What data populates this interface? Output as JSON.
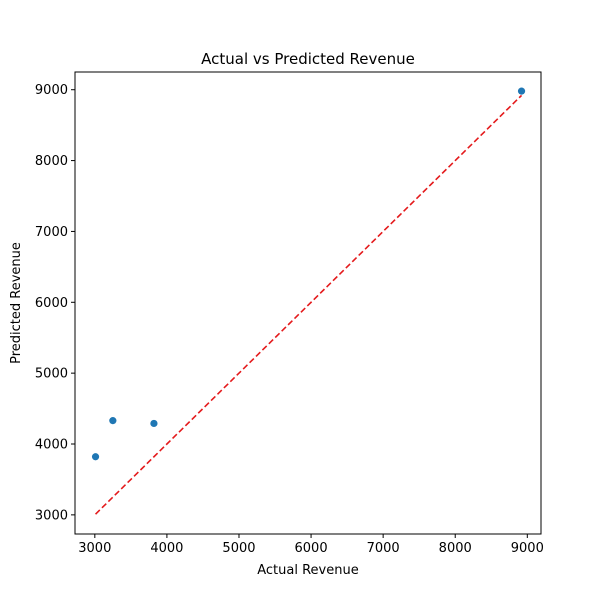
{
  "chart_data": {
    "type": "scatter",
    "title": "Actual vs Predicted Revenue",
    "xlabel": "Actual Revenue",
    "ylabel": "Predicted Revenue",
    "xlim": [
      2725,
      9190
    ],
    "ylim": [
      2730,
      9250
    ],
    "x_ticks": [
      3000,
      4000,
      5000,
      6000,
      7000,
      8000,
      9000
    ],
    "y_ticks": [
      3000,
      4000,
      5000,
      6000,
      7000,
      8000,
      9000
    ],
    "grid": false,
    "points": [
      {
        "x": 3010,
        "y": 3820
      },
      {
        "x": 3250,
        "y": 4330
      },
      {
        "x": 3820,
        "y": 4290
      },
      {
        "x": 8920,
        "y": 8980
      }
    ],
    "reference_line": {
      "x": [
        3010,
        8920
      ],
      "y": [
        3010,
        8920
      ]
    },
    "colors": {
      "points": "#1f77b4",
      "reference_line": "#e41a1c",
      "axes": "#000000"
    }
  }
}
